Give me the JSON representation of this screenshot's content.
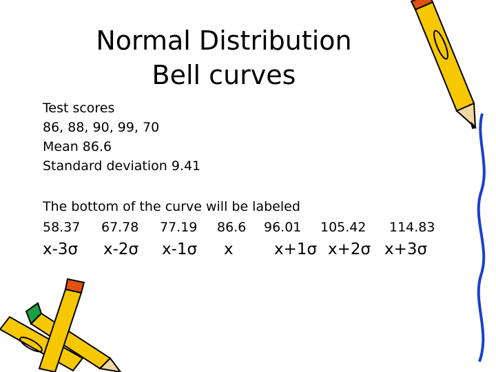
{
  "title": {
    "line1": "Normal Distribution",
    "line2": "Bell curves"
  },
  "body": {
    "lines": [
      "Test scores",
      "86, 88, 90, 99, 70",
      "Mean 86.6",
      "Standard deviation 9.41",
      "The bottom of the curve will be labeled"
    ]
  },
  "scale": {
    "values": [
      "58.37",
      "67.78",
      "77.19",
      "86.6",
      "96.01",
      "105.42",
      "114.83"
    ],
    "labels": [
      "x-3σ",
      "x-2σ",
      "x-1σ",
      "x",
      "x+1σ",
      "x+2σ",
      "x+3σ"
    ]
  }
}
